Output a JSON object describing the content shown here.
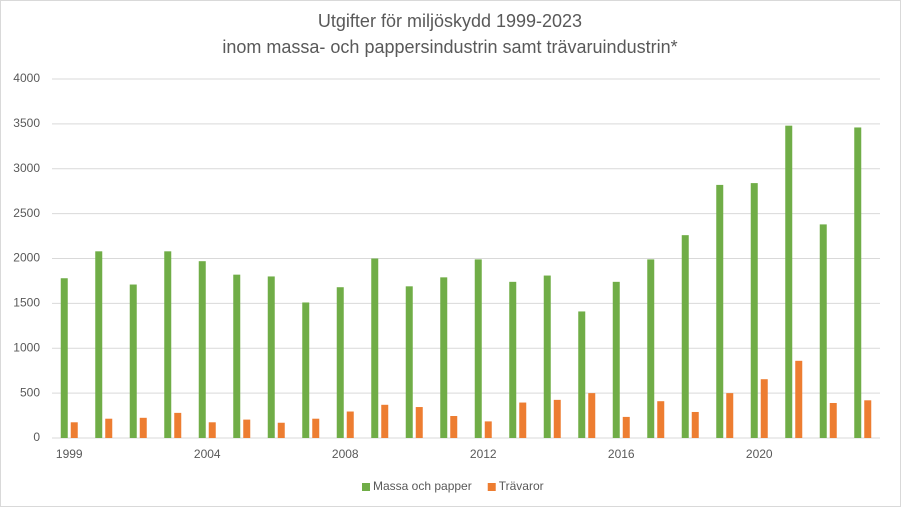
{
  "chart_data": {
    "type": "bar",
    "title": "Utgifter för miljöskydd 1999-2023",
    "subtitle": "inom massa- och pappersindustrin samt trävaruindustrin*",
    "categories": [
      "1999",
      null,
      null,
      null,
      "2004",
      null,
      null,
      null,
      "2008",
      null,
      null,
      null,
      "2012",
      null,
      null,
      null,
      "2016",
      null,
      null,
      null,
      "2020",
      null,
      null,
      null
    ],
    "series": [
      {
        "name": "Massa och papper",
        "color": "#70ad47",
        "values": [
          1780,
          2080,
          1710,
          2080,
          1970,
          1820,
          1800,
          1510,
          1680,
          2000,
          1690,
          1790,
          1990,
          1740,
          1810,
          1410,
          1740,
          1990,
          2260,
          2820,
          2840,
          3480,
          2380,
          3460
        ]
      },
      {
        "name": "Trävaror",
        "color": "#ed7d31",
        "values": [
          175,
          215,
          225,
          280,
          175,
          205,
          170,
          215,
          295,
          370,
          345,
          245,
          185,
          395,
          425,
          500,
          235,
          410,
          290,
          500,
          655,
          860,
          390,
          420
        ]
      }
    ],
    "ylim": [
      0,
      4000
    ],
    "yticks": [
      0,
      500,
      1000,
      1500,
      2000,
      2500,
      3000,
      3500,
      4000
    ],
    "grid": true,
    "legend": "bottom"
  }
}
